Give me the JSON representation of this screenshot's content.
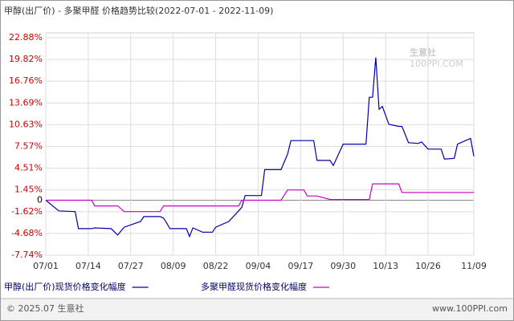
{
  "chart_data": {
    "type": "line",
    "title": "甲醇(出厂价) - 多聚甲醛 价格趋势比较(2022-07-01 - 2022-11-09)",
    "watermark": [
      "生意社",
      "100PPI.COM"
    ],
    "footer_left": "© 2025.07 生意社",
    "footer_right": "www.100PPI.com",
    "x": [
      "07/01",
      "07/05",
      "07/10",
      "07/11",
      "07/15",
      "07/16",
      "07/21",
      "07/23",
      "07/25",
      "07/30",
      "07/31",
      "08/05",
      "08/06",
      "08/07",
      "08/08",
      "08/13",
      "08/14",
      "08/15",
      "08/18",
      "08/21",
      "08/22",
      "08/26",
      "08/28",
      "08/29",
      "08/30",
      "08/31",
      "09/05",
      "09/06",
      "09/11",
      "09/13",
      "09/14",
      "09/18",
      "09/19",
      "09/21",
      "09/22",
      "09/26",
      "09/27",
      "09/30",
      "10/07",
      "10/08",
      "10/09",
      "10/10",
      "10/11",
      "10/12",
      "10/14",
      "10/17",
      "10/18",
      "10/20",
      "10/23",
      "10/24",
      "10/26",
      "10/30",
      "10/31",
      "11/03",
      "11/04",
      "11/08",
      "11/09"
    ],
    "series": [
      {
        "name": "甲醇(出厂价)现货价格变化幅度",
        "color": "#0000aa",
        "values": [
          0,
          -1.5,
          -1.6,
          -4.0,
          -4.0,
          -3.9,
          -4.0,
          -4.9,
          -3.8,
          -3.0,
          -2.3,
          -2.3,
          -2.5,
          -3.2,
          -4.0,
          -4.0,
          -5.1,
          -3.9,
          -4.5,
          -4.5,
          -3.8,
          -3.0,
          -2.0,
          -1.5,
          -1.0,
          0.65,
          0.65,
          4.3,
          4.3,
          6.5,
          8.4,
          8.4,
          8.4,
          8.4,
          5.6,
          5.6,
          4.9,
          7.9,
          7.9,
          14.5,
          14.5,
          20.1,
          12.8,
          13.2,
          10.7,
          10.4,
          10.4,
          8.1,
          8.0,
          8.2,
          7.2,
          7.2,
          5.8,
          5.9,
          7.9,
          8.7,
          6.2
        ]
      },
      {
        "name": "多聚甲醛现货价格变化幅度",
        "color": "#cc00cc",
        "values": [
          0,
          0,
          0,
          0,
          0,
          -0.8,
          -0.8,
          -0.8,
          -1.6,
          -1.6,
          -1.6,
          -1.6,
          -0.8,
          -0.8,
          -0.8,
          -0.8,
          -0.8,
          -0.8,
          -0.8,
          -0.8,
          -0.8,
          -0.8,
          -0.8,
          -0.8,
          0,
          0,
          0,
          0,
          0,
          1.45,
          1.45,
          1.45,
          0.6,
          0.6,
          0.6,
          0.1,
          0.1,
          0.1,
          0.1,
          0.1,
          2.3,
          2.3,
          2.3,
          2.3,
          2.3,
          2.3,
          1.1,
          1.1,
          1.1,
          1.1,
          1.1,
          1.1,
          1.1,
          1.1,
          1.1,
          1.1,
          1.1
        ]
      }
    ],
    "xlim": [
      "07/01",
      "11/09"
    ],
    "xticks": [
      "07/01",
      "07/14",
      "07/27",
      "08/09",
      "08/22",
      "09/04",
      "09/17",
      "09/30",
      "10/13",
      "10/26",
      "11/09"
    ],
    "ylim": [
      -7.74,
      22.88
    ],
    "yticks": [
      {
        "value": 22.88,
        "label": "22.88%"
      },
      {
        "value": 19.82,
        "label": "19.82%"
      },
      {
        "value": 16.76,
        "label": "16.76%"
      },
      {
        "value": 13.69,
        "label": "13.69%"
      },
      {
        "value": 10.63,
        "label": "10.63%"
      },
      {
        "value": 7.57,
        "label": "7.57%"
      },
      {
        "value": 4.51,
        "label": "4.51%"
      },
      {
        "value": 1.45,
        "label": "1.45%"
      },
      0,
      {
        "value": -1.62,
        "label": "-1.62%"
      },
      {
        "value": -4.68,
        "label": "-4.68%"
      },
      {
        "value": -7.74,
        "label": "-7.74%"
      }
    ],
    "grid": true
  }
}
